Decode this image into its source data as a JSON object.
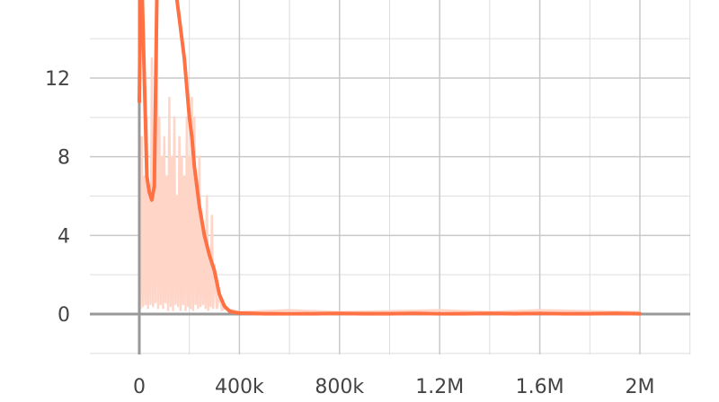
{
  "chart_data": {
    "type": "line",
    "title": "",
    "xlabel": "",
    "ylabel": "",
    "xlim": [
      -100000,
      2200000
    ],
    "ylim": [
      -2,
      16
    ],
    "x_ticks": [
      0,
      400000,
      800000,
      1200000,
      1600000,
      2000000
    ],
    "x_tick_labels": [
      "0",
      "400k",
      "800k",
      "1.2M",
      "1.6M",
      "2M"
    ],
    "y_ticks": [
      0,
      4,
      8,
      12
    ],
    "y_tick_labels": [
      "0",
      "4",
      "8",
      "12"
    ],
    "grid": true,
    "legend": "none",
    "colors": {
      "smoothed": "#ff7043",
      "raw": "#ffd5c8",
      "grid": "#c9c9c9",
      "axis": "#999999"
    },
    "series": [
      {
        "role": "smoothed",
        "x": [
          0,
          5000,
          10000,
          20000,
          30000,
          40000,
          50000,
          60000,
          70000,
          80000,
          90000,
          100000,
          120000,
          140000,
          160000,
          180000,
          200000,
          210000,
          220000,
          240000,
          260000,
          280000,
          300000,
          320000,
          340000,
          360000,
          380000,
          400000,
          450000,
          500000,
          600000,
          700000,
          800000,
          900000,
          1000000,
          1100000,
          1200000,
          1300000,
          1400000,
          1500000,
          1600000,
          1700000,
          1800000,
          1900000,
          2000000
        ],
        "y": [
          10.8,
          17,
          17,
          12,
          7,
          6.2,
          5.8,
          6.5,
          16,
          17,
          17,
          17,
          17,
          17,
          15,
          13,
          10,
          9,
          7.5,
          5.5,
          4,
          3,
          2.2,
          1,
          0.4,
          0.15,
          0.08,
          0.05,
          0.03,
          0.02,
          0.02,
          0.02,
          0.03,
          0.02,
          0.02,
          0.03,
          0.02,
          0.02,
          0.03,
          0.02,
          0.03,
          0.02,
          0.02,
          0.03,
          0.02
        ]
      },
      {
        "role": "raw",
        "x": [
          0,
          5000,
          10000,
          15000,
          20000,
          25000,
          30000,
          35000,
          40000,
          45000,
          50000,
          55000,
          60000,
          65000,
          70000,
          75000,
          80000,
          85000,
          90000,
          95000,
          100000,
          105000,
          110000,
          115000,
          120000,
          125000,
          130000,
          135000,
          140000,
          145000,
          150000,
          155000,
          160000,
          165000,
          170000,
          175000,
          180000,
          185000,
          190000,
          195000,
          200000,
          205000,
          210000,
          215000,
          220000,
          225000,
          230000,
          235000,
          240000,
          245000,
          250000,
          255000,
          260000,
          265000,
          270000,
          275000,
          280000,
          285000,
          290000,
          295000,
          300000,
          310000,
          320000,
          330000,
          340000,
          400000,
          600000,
          800000,
          1000000,
          1200000,
          1400000,
          1600000,
          1800000,
          2000000
        ],
        "y": [
          6,
          0.3,
          9,
          0.4,
          7,
          0.5,
          10,
          0.3,
          6,
          0.5,
          13,
          0.4,
          8,
          0.6,
          16,
          0.3,
          10,
          0.5,
          8,
          0.3,
          9,
          0.6,
          7,
          0.2,
          11,
          0.4,
          8,
          0.2,
          10,
          0.5,
          6,
          0.4,
          9,
          0.2,
          8,
          0.5,
          7,
          0.2,
          10,
          0.4,
          8,
          0.3,
          11,
          0.2,
          10,
          0.5,
          6,
          0.3,
          8,
          0.4,
          5,
          0.5,
          4,
          0.3,
          6,
          0.2,
          3,
          0.4,
          5,
          0.3,
          2.5,
          0.3,
          1,
          0.2,
          0.3,
          0.1,
          0.2,
          0.1,
          0.15,
          0.2,
          0.1,
          0.2,
          0.15,
          0.1
        ]
      }
    ]
  }
}
